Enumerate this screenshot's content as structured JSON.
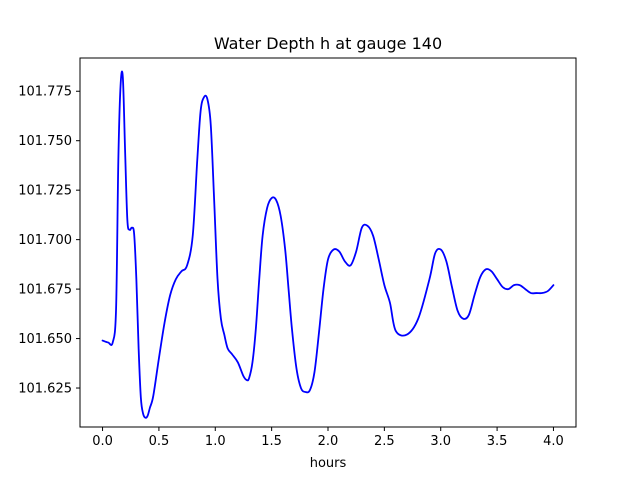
{
  "chart_data": {
    "type": "line",
    "title": "Water Depth h at gauge 140",
    "xlabel": "hours",
    "ylabel": "",
    "xlim": [
      -0.2,
      4.2
    ],
    "ylim": [
      101.6053,
      101.7918
    ],
    "xticks": [
      0.0,
      0.5,
      1.0,
      1.5,
      2.0,
      2.5,
      3.0,
      3.5,
      4.0
    ],
    "xtick_labels": [
      "0.0",
      "0.5",
      "1.0",
      "1.5",
      "2.0",
      "2.5",
      "3.0",
      "3.5",
      "4.0"
    ],
    "yticks": [
      101.625,
      101.65,
      101.675,
      101.7,
      101.725,
      101.75,
      101.775
    ],
    "ytick_labels": [
      "101.625",
      "101.650",
      "101.675",
      "101.700",
      "101.725",
      "101.750",
      "101.775"
    ],
    "grid": false,
    "series": [
      {
        "color": "#0000ff",
        "x": [
          0.0,
          0.05,
          0.09,
          0.12,
          0.14,
          0.16,
          0.18,
          0.2,
          0.22,
          0.24,
          0.26,
          0.28,
          0.3,
          0.32,
          0.34,
          0.36,
          0.38,
          0.4,
          0.42,
          0.45,
          0.5,
          0.55,
          0.6,
          0.65,
          0.7,
          0.75,
          0.8,
          0.84,
          0.87,
          0.9,
          0.93,
          0.96,
          0.99,
          1.02,
          1.05,
          1.08,
          1.11,
          1.15,
          1.2,
          1.25,
          1.28,
          1.3,
          1.33,
          1.36,
          1.39,
          1.42,
          1.46,
          1.5,
          1.54,
          1.58,
          1.62,
          1.65,
          1.68,
          1.72,
          1.76,
          1.8,
          1.84,
          1.88,
          1.92,
          1.96,
          2.0,
          2.05,
          2.1,
          2.15,
          2.2,
          2.25,
          2.3,
          2.35,
          2.4,
          2.45,
          2.5,
          2.55,
          2.6,
          2.7,
          2.8,
          2.9,
          2.95,
          3.0,
          3.05,
          3.1,
          3.15,
          3.2,
          3.25,
          3.3,
          3.35,
          3.4,
          3.45,
          3.5,
          3.55,
          3.6,
          3.65,
          3.7,
          3.75,
          3.8,
          3.85,
          3.9,
          3.95,
          4.0
        ],
        "y": [
          101.649,
          101.648,
          101.648,
          101.665,
          101.74,
          101.778,
          101.782,
          101.745,
          101.71,
          101.705,
          101.706,
          101.703,
          101.68,
          101.645,
          101.62,
          101.612,
          101.61,
          101.611,
          101.615,
          101.621,
          101.64,
          101.658,
          101.672,
          101.68,
          101.684,
          101.687,
          101.702,
          101.74,
          101.765,
          101.772,
          101.771,
          101.758,
          101.72,
          101.68,
          101.66,
          101.652,
          101.645,
          101.642,
          101.638,
          101.631,
          101.629,
          101.63,
          101.638,
          101.655,
          101.68,
          101.702,
          101.716,
          101.721,
          101.72,
          101.712,
          101.695,
          101.675,
          101.655,
          101.635,
          101.625,
          101.623,
          101.624,
          101.633,
          101.653,
          101.675,
          101.69,
          101.695,
          101.694,
          101.689,
          101.687,
          101.694,
          101.706,
          101.707,
          101.702,
          101.69,
          101.677,
          101.668,
          101.654,
          101.652,
          101.66,
          101.68,
          101.693,
          101.695,
          101.689,
          101.676,
          101.664,
          101.66,
          101.662,
          101.672,
          101.681,
          101.685,
          101.684,
          101.68,
          101.676,
          101.675,
          101.677,
          101.677,
          101.675,
          101.673,
          101.673,
          101.673,
          101.674,
          101.677
        ]
      }
    ]
  }
}
